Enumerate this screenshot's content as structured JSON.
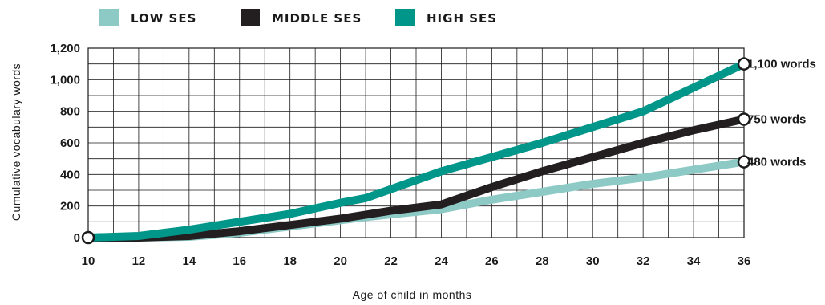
{
  "chart_data": {
    "type": "line",
    "xlabel": "Age of child in months",
    "ylabel": "Cumulative vocabulary words",
    "xlim": [
      10,
      36
    ],
    "ylim": [
      0,
      1200
    ],
    "x_ticks": [
      "10",
      "12",
      "14",
      "16",
      "18",
      "20",
      "22",
      "24",
      "26",
      "28",
      "30",
      "32",
      "34",
      "36"
    ],
    "y_ticks": [
      "0",
      "200",
      "400",
      "600",
      "800",
      "1,000",
      "1,200"
    ],
    "grid": true,
    "legend_position": "top",
    "series": [
      {
        "name": "LOW SES",
        "color": "#8dcac6",
        "x": [
          10,
          12,
          14,
          16,
          18,
          20,
          21,
          24,
          26,
          28,
          30,
          32,
          34,
          36
        ],
        "y": [
          0,
          0,
          5,
          30,
          70,
          110,
          130,
          180,
          240,
          290,
          340,
          380,
          430,
          480
        ],
        "end_label": "480 words"
      },
      {
        "name": "MIDDLE SES",
        "color": "#231f20",
        "x": [
          10,
          12,
          14,
          16,
          18,
          20,
          22,
          24,
          26,
          28,
          30,
          32,
          34,
          36
        ],
        "y": [
          0,
          0,
          10,
          40,
          80,
          120,
          170,
          210,
          320,
          420,
          510,
          600,
          680,
          750
        ],
        "end_label": "750 words"
      },
      {
        "name": "HIGH SES",
        "color": "#00968a",
        "x": [
          10,
          12,
          14,
          16,
          18,
          20,
          21,
          24,
          26,
          28,
          30,
          32,
          34,
          36
        ],
        "y": [
          0,
          10,
          50,
          100,
          150,
          220,
          250,
          420,
          510,
          600,
          700,
          800,
          950,
          1100
        ],
        "end_label": "1,100 words"
      }
    ]
  }
}
